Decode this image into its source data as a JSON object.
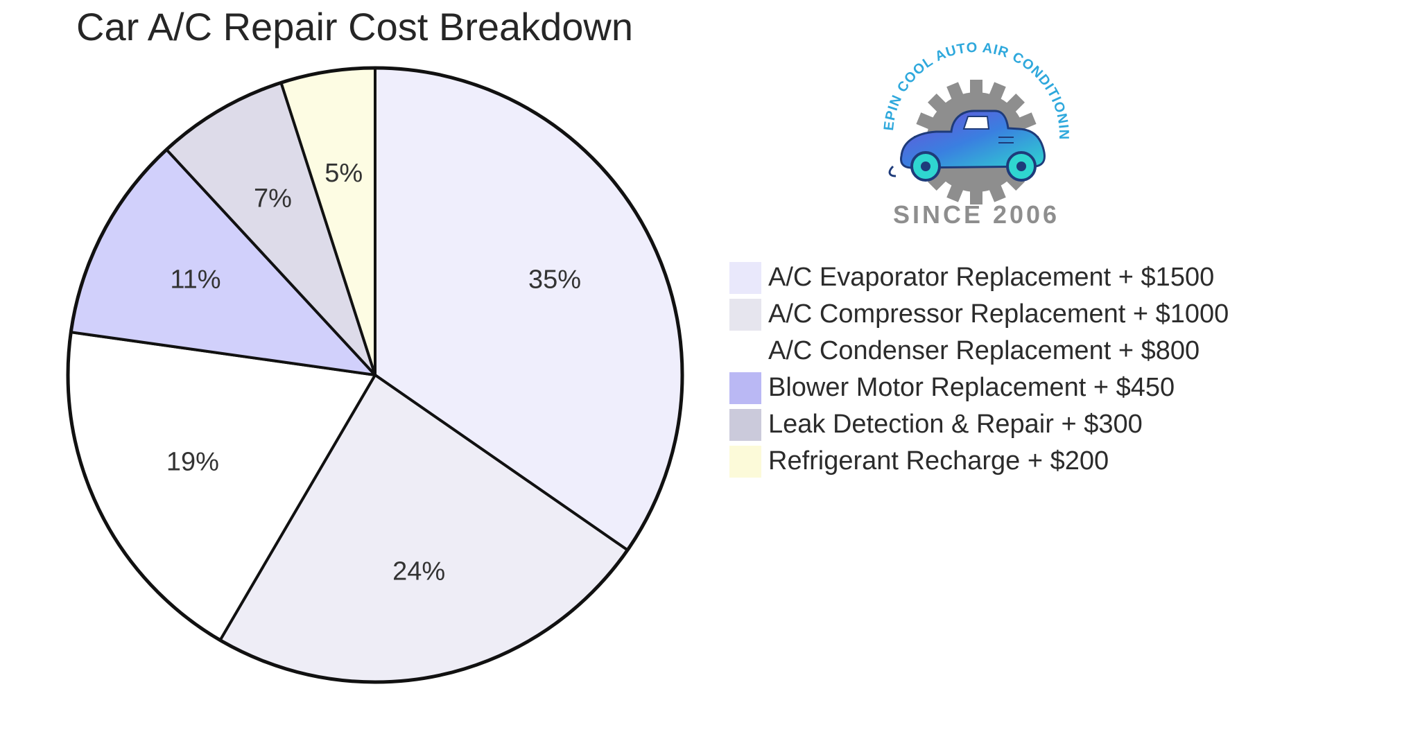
{
  "chart_data": {
    "type": "pie",
    "title": "Car A/C Repair Cost Breakdown",
    "series": [
      {
        "label": "A/C Evaporator Replacement + $1500",
        "value": 35,
        "percent_label": "35%",
        "color": "#efeefc"
      },
      {
        "label": "A/C Compressor Replacement + $1000",
        "value": 24,
        "percent_label": "24%",
        "color": "#eeedf6"
      },
      {
        "label": "A/C Condenser Replacement + $800",
        "value": 19,
        "percent_label": "19%",
        "color": "#ffffff"
      },
      {
        "label": "Blower Motor Replacement + $450",
        "value": 11,
        "percent_label": "11%",
        "color": "#d1d0fb"
      },
      {
        "label": "Leak Detection & Repair + $300",
        "value": 7,
        "percent_label": "7%",
        "color": "#dddbe9"
      },
      {
        "label": "Refrigerant Recharge + $200",
        "value": 5,
        "percent_label": "5%",
        "color": "#fdfce3"
      }
    ],
    "legend_swatch_colors": [
      "#e9e8fb",
      "#e6e5ee",
      "#ffffff",
      "#bab8f4",
      "#cbcadb",
      "#fcfad9"
    ],
    "legend_position": "right"
  },
  "logo": {
    "arc_text": "KEEPIN COOL AUTO AIR CONDITIONING",
    "since_text": "SINCE 2006",
    "arc_color": "#2ea8dc",
    "gear_color": "#8e8e8e",
    "car_color": "#3a7fe0"
  }
}
